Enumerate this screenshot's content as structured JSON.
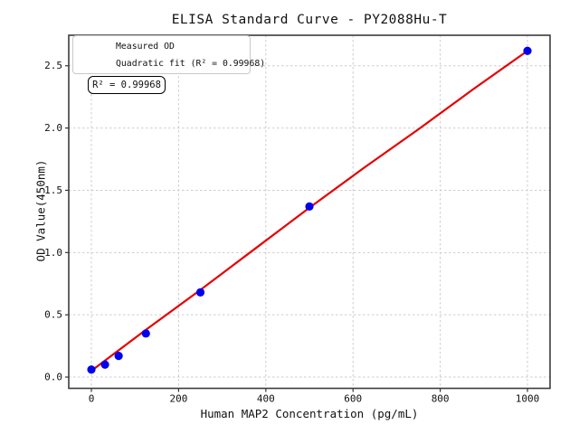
{
  "title": "ELISA Standard Curve - PY2088Hu-T",
  "annotation": {
    "text": "R² = 0.99968"
  },
  "colors": {
    "point": "#0000ee",
    "fit_line": "#e60000",
    "grid": "#cdcdcd",
    "frame": "#3c3c3c",
    "tick": "#333333",
    "text": "#111111",
    "legend_border": "#c9c9c9",
    "background": "#ffffff"
  },
  "chart_data": {
    "type": "scatter",
    "title": "ELISA Standard Curve - PY2088Hu-T",
    "xlabel": "Human MAP2 Concentration (pg/mL)",
    "ylabel": "OD Value(450nm)",
    "xlim": [
      -51.9,
      1051.8
    ],
    "ylim": [
      -0.0905,
      2.745
    ],
    "xticks": [
      0,
      200,
      400,
      600,
      800,
      1000
    ],
    "yticks": [
      0.0,
      0.5,
      1.0,
      1.5,
      2.0,
      2.5
    ],
    "xtick_labels": [
      "0",
      "200",
      "400",
      "600",
      "800",
      "1000"
    ],
    "ytick_labels": [
      "0.0",
      "0.5",
      "1.0",
      "1.5",
      "2.0",
      "2.5"
    ],
    "grid": true,
    "legend_position": "upper left",
    "r_squared": 0.99968,
    "series": [
      {
        "name": "Measured OD",
        "type": "scatter",
        "color": "#0000ee",
        "x": [
          0,
          31.25,
          62.5,
          125,
          250,
          500,
          1000
        ],
        "y": [
          0.06,
          0.1,
          0.17,
          0.35,
          0.68,
          1.37,
          2.62
        ]
      },
      {
        "name": "Quadratic fit (R² = 0.99968)",
        "type": "line",
        "color": "#e60000",
        "x": [
          0,
          125,
          250,
          375,
          500,
          625,
          750,
          875,
          1000
        ],
        "y": [
          0.05,
          0.38,
          0.7,
          1.03,
          1.36,
          1.68,
          1.99,
          2.31,
          2.62
        ]
      }
    ]
  }
}
